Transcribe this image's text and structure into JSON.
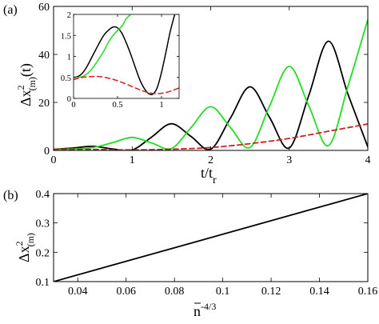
{
  "chart_data": [
    {
      "panel": "(a)",
      "type": "line",
      "xlabel": "t/t_r",
      "ylabel": "Δx²_(m)(t)",
      "xlim": [
        0,
        4
      ],
      "ylim": [
        0,
        60
      ],
      "xticks": [
        "0",
        "1",
        "2",
        "3",
        "4"
      ],
      "yticks": [
        "0",
        "20",
        "40",
        "60"
      ],
      "grid": false,
      "series": [
        {
          "color": "#000000",
          "style": "solid",
          "x": [
            0,
            0.25,
            0.5,
            0.75,
            1.0,
            1.25,
            1.5,
            1.75,
            2.0,
            2.25,
            2.5,
            2.75,
            3.0,
            3.25,
            3.5,
            3.75,
            4.0
          ],
          "y": [
            0.5,
            1.0,
            1.7,
            0.6,
            0.15,
            5.6,
            11.1,
            5.8,
            0.5,
            13.4,
            26.5,
            13.7,
            1.0,
            23.0,
            45.5,
            23.2,
            1.5
          ]
        },
        {
          "color": "#22dd22",
          "style": "solid",
          "x": [
            0,
            0.25,
            0.5,
            0.75,
            1.0,
            1.25,
            1.5,
            1.75,
            2.0,
            2.25,
            2.5,
            2.75,
            3.0,
            3.25,
            3.5,
            3.75,
            4.0
          ],
          "y": [
            0.5,
            0.6,
            1.2,
            3.2,
            5.4,
            3.1,
            0.8,
            9.5,
            18.2,
            9.6,
            1.2,
            18.5,
            35.0,
            18.5,
            2.0,
            27.0,
            54.5
          ]
        },
        {
          "color": "#cc2222",
          "style": "dashed",
          "x": [
            0,
            0.5,
            1.0,
            1.5,
            2.0,
            2.5,
            3.0,
            3.5,
            4.0
          ],
          "y": [
            0.45,
            0.4,
            0.2,
            0.5,
            1.2,
            2.8,
            5.0,
            8.0,
            11.0
          ]
        }
      ],
      "inset": {
        "xlim": [
          0,
          1.2
        ],
        "ylim": [
          0,
          2
        ],
        "xticks": [
          "0",
          "0.5",
          "1"
        ],
        "yticks": [
          "0",
          "0.5",
          "1",
          "1.5",
          "2"
        ],
        "series": [
          {
            "color": "#000000",
            "style": "solid",
            "x": [
              0,
              0.05,
              0.1,
              0.15,
              0.2,
              0.25,
              0.3,
              0.35,
              0.4,
              0.45,
              0.5,
              0.55,
              0.6,
              0.65,
              0.7,
              0.75,
              0.8,
              0.85,
              0.9,
              0.95,
              1.0,
              1.05,
              1.1,
              1.15
            ],
            "y": [
              0.5,
              0.52,
              0.6,
              0.75,
              0.95,
              1.15,
              1.35,
              1.52,
              1.63,
              1.7,
              1.68,
              1.55,
              1.32,
              1.05,
              0.75,
              0.46,
              0.25,
              0.12,
              0.1,
              0.25,
              0.62,
              1.1,
              1.6,
              2.0
            ]
          },
          {
            "color": "#22dd22",
            "style": "solid",
            "x": [
              0,
              0.05,
              0.1,
              0.15,
              0.2,
              0.25,
              0.3,
              0.35,
              0.4,
              0.45,
              0.5,
              0.55,
              0.6,
              0.65
            ],
            "y": [
              0.5,
              0.5,
              0.52,
              0.58,
              0.68,
              0.82,
              0.98,
              1.15,
              1.35,
              1.5,
              1.62,
              1.72,
              1.9,
              2.0
            ]
          },
          {
            "color": "#cc2222",
            "style": "dashed",
            "x": [
              0,
              0.1,
              0.2,
              0.3,
              0.4,
              0.5,
              0.6,
              0.7,
              0.8,
              0.9,
              1.0,
              1.1,
              1.2
            ],
            "y": [
              0.45,
              0.5,
              0.52,
              0.52,
              0.48,
              0.42,
              0.34,
              0.25,
              0.17,
              0.12,
              0.12,
              0.17,
              0.25
            ]
          }
        ]
      }
    },
    {
      "panel": "(b)",
      "type": "line",
      "xlabel": "n̄^-4/3",
      "ylabel": "Δx²_(m)",
      "xlim": [
        0.03,
        0.16
      ],
      "ylim": [
        0.1,
        0.4
      ],
      "xticks": [
        "0.04",
        "0.06",
        "0.08",
        "0.1",
        "0.12",
        "0.14",
        "0.16"
      ],
      "yticks": [
        "0.1",
        "0.2",
        "0.3",
        "0.4"
      ],
      "grid": false,
      "series": [
        {
          "color": "#000000",
          "style": "solid",
          "x": [
            0.03,
            0.16
          ],
          "y": [
            0.1,
            0.4
          ]
        }
      ]
    }
  ],
  "labels": {
    "panel_a": "(a)",
    "panel_b": "(b)",
    "a_ylabel": "Δx",
    "a_ylabel_sup": "2",
    "a_ylabel_sub": "(m)",
    "a_ylabel_tail": "(t)",
    "a_xlabel": "t/t",
    "a_xlabel_sub": "r",
    "b_ylabel": "Δx",
    "b_ylabel_sup": "2",
    "b_ylabel_sub": "(m)",
    "b_xlabel": "n",
    "b_xlabel_sup": "-4/3"
  }
}
